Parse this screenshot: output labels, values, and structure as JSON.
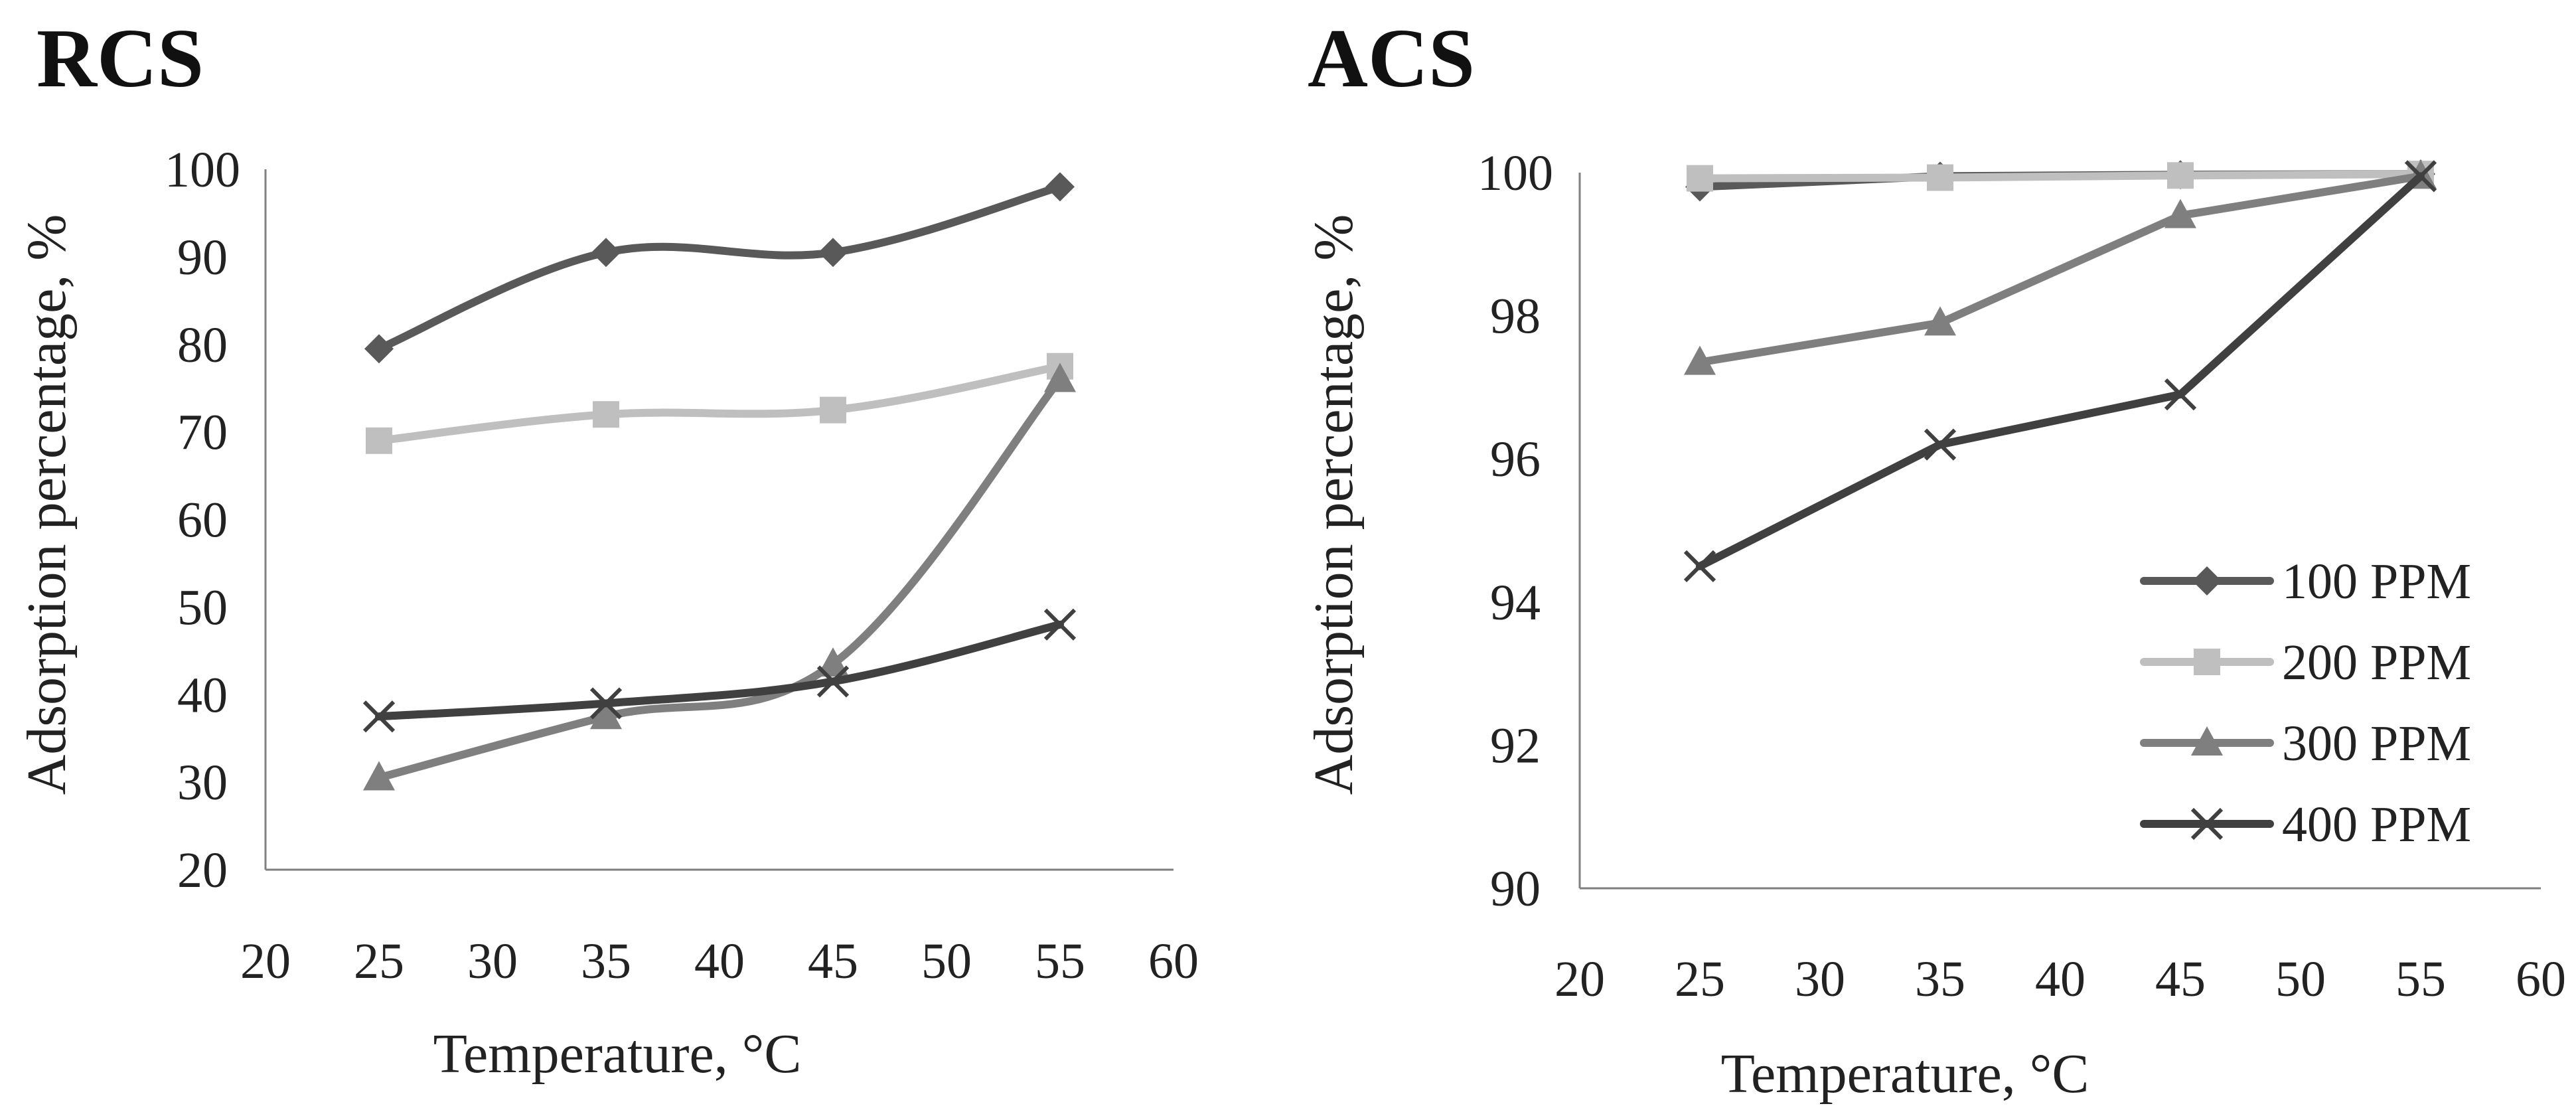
{
  "chart_data": [
    {
      "type": "line",
      "title": "RCS",
      "xlabel": "Temperature, °C",
      "ylabel": "Adsorption percentage, %",
      "xlim": [
        20,
        60
      ],
      "ylim": [
        20,
        100
      ],
      "xticks": [
        20,
        25,
        30,
        35,
        40,
        45,
        50,
        55,
        60
      ],
      "yticks": [
        20,
        30,
        40,
        50,
        60,
        70,
        80,
        90,
        100
      ],
      "grid": false,
      "series": [
        {
          "name": "100 PPM",
          "x": [
            25,
            35,
            45,
            55
          ],
          "y": [
            79.5,
            90.5,
            90.5,
            98
          ],
          "color": "#595959",
          "marker": "diamond"
        },
        {
          "name": "200 PPM",
          "x": [
            25,
            35,
            45,
            55
          ],
          "y": [
            69,
            72,
            72.5,
            77.5
          ],
          "color": "#bfbfbf",
          "marker": "square"
        },
        {
          "name": "300 PPM",
          "x": [
            25,
            35,
            45,
            55
          ],
          "y": [
            30.5,
            37.5,
            43.5,
            76
          ],
          "color": "#7f7f7f",
          "marker": "triangle"
        },
        {
          "name": "400 PPM",
          "x": [
            25,
            35,
            45,
            55
          ],
          "y": [
            37.5,
            39,
            41.5,
            48
          ],
          "color": "#404040",
          "marker": "x"
        }
      ]
    },
    {
      "type": "line",
      "title": "ACS",
      "xlabel": "Temperature, °C",
      "ylabel": "Adsorption percentage, %",
      "xlim": [
        20,
        60
      ],
      "ylim": [
        90,
        100
      ],
      "xticks": [
        20,
        25,
        30,
        35,
        40,
        45,
        50,
        55,
        60
      ],
      "yticks": [
        90,
        92,
        94,
        96,
        98,
        100
      ],
      "grid": false,
      "legend": "bottom-right",
      "series": [
        {
          "name": "100 PPM",
          "x": [
            25,
            35,
            45,
            55
          ],
          "y": [
            99.8,
            99.95,
            99.97,
            99.98
          ],
          "color": "#595959",
          "marker": "diamond"
        },
        {
          "name": "200 PPM",
          "x": [
            25,
            35,
            45,
            55
          ],
          "y": [
            99.92,
            99.93,
            99.96,
            99.98
          ],
          "color": "#bfbfbf",
          "marker": "square"
        },
        {
          "name": "300 PPM",
          "x": [
            25,
            35,
            45,
            55
          ],
          "y": [
            97.35,
            97.9,
            99.4,
            99.95
          ],
          "color": "#7f7f7f",
          "marker": "triangle"
        },
        {
          "name": "400 PPM",
          "x": [
            25,
            35,
            45,
            55
          ],
          "y": [
            94.5,
            96.2,
            96.9,
            99.95
          ],
          "color": "#404040",
          "marker": "x"
        }
      ]
    }
  ]
}
